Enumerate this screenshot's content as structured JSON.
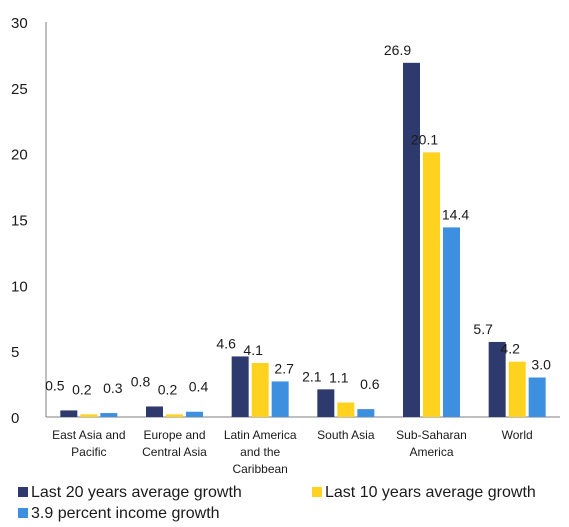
{
  "chart_data": {
    "type": "bar",
    "title": "",
    "xlabel": "",
    "ylabel": "",
    "ylim": [
      0,
      30
    ],
    "yticks": [
      0,
      5,
      10,
      15,
      20,
      25,
      30
    ],
    "grid": false,
    "legend_position": "bottom",
    "categories": [
      [
        "East Asia and",
        "Pacific"
      ],
      [
        "Europe and",
        "Central Asia"
      ],
      [
        "Latin America",
        "and the",
        "Caribbean"
      ],
      [
        "South Asia"
      ],
      [
        "Sub-Saharan",
        "America"
      ],
      [
        "World"
      ]
    ],
    "series": [
      {
        "name": "Last 20 years average growth",
        "color": "#2e3a6e",
        "values": [
          0.5,
          0.8,
          4.6,
          2.1,
          26.9,
          5.7
        ],
        "labels": [
          "0.5",
          "0.8",
          "4.6",
          "2.1",
          "26.9",
          "5.7"
        ]
      },
      {
        "name": "Last 10 years average growth",
        "color": "#ffd21f",
        "values": [
          0.2,
          0.2,
          4.1,
          1.1,
          20.1,
          4.2
        ],
        "labels": [
          "0.2",
          "0.2",
          "4.1",
          "1.1",
          "20.1",
          "4.2"
        ]
      },
      {
        "name": "3.9 percent income growth",
        "color": "#3d8fe0",
        "values": [
          0.3,
          0.4,
          2.7,
          0.6,
          14.4,
          3.0
        ],
        "labels": [
          "0.3",
          "0.4",
          "2.7",
          "0.6",
          "14.4",
          "3.0"
        ]
      }
    ]
  }
}
